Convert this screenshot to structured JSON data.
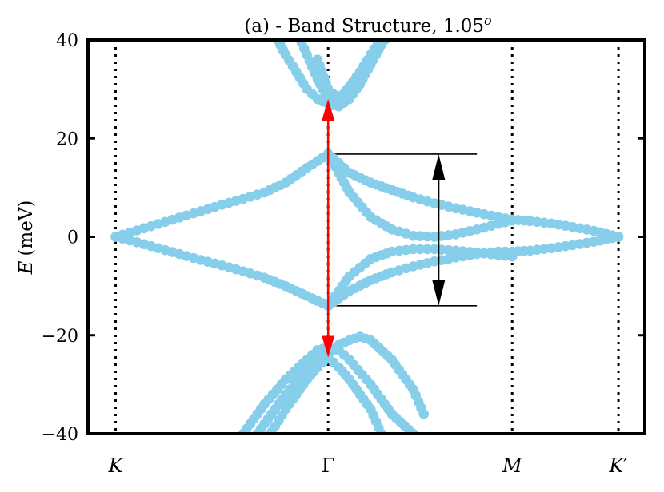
{
  "chart_data": {
    "type": "scatter",
    "title": "(a) - Band Structure, 1.05",
    "title_superscript": "o",
    "ylabel_symbol": "E",
    "ylabel_unit": "(meV)",
    "ylim": [
      -40,
      40
    ],
    "yticks": [
      {
        "value": 40,
        "label": "40"
      },
      {
        "value": 20,
        "label": "20"
      },
      {
        "value": 0,
        "label": "0"
      },
      {
        "value": -20,
        "label": "−20"
      },
      {
        "value": -40,
        "label": "−40"
      }
    ],
    "k_points": [
      {
        "label": "K",
        "pos": 0.0,
        "italic": true
      },
      {
        "label": "Γ",
        "pos": 1.0,
        "italic": false
      },
      {
        "label": "M",
        "pos": 1.866,
        "italic": true
      },
      {
        "label": "K′",
        "pos": 2.366,
        "italic": true
      }
    ],
    "xlim": [
      -0.13,
      2.49
    ],
    "marker_color": "#87ceeb",
    "grid": false,
    "series": [
      {
        "x": [
          0,
          0.1,
          0.2,
          0.3,
          0.4,
          0.5,
          0.6,
          0.7,
          0.8,
          0.9,
          1.0
        ],
        "y": [
          0,
          1.3,
          2.6,
          3.9,
          5.2,
          6.5,
          7.7,
          9.0,
          11.0,
          14.0,
          16.8
        ]
      },
      {
        "x": [
          0,
          0.1,
          0.2,
          0.3,
          0.4,
          0.5,
          0.6,
          0.7,
          0.8,
          0.9,
          1.0
        ],
        "y": [
          0,
          -1.1,
          -2.3,
          -3.5,
          -4.7,
          -5.8,
          -7.0,
          -8.3,
          -10.0,
          -12.0,
          -14.0
        ]
      },
      {
        "x": [
          1.0,
          1.05,
          1.1,
          1.2,
          1.3,
          1.4,
          1.5,
          1.6,
          1.7,
          1.8,
          1.866,
          1.95,
          2.05,
          2.15,
          2.25,
          2.366
        ],
        "y": [
          16.8,
          15.0,
          13.0,
          11.0,
          9.5,
          8.0,
          6.8,
          5.8,
          4.9,
          4.0,
          3.5,
          3.2,
          2.7,
          2.0,
          1.2,
          0
        ]
      },
      {
        "x": [
          1.0,
          1.05,
          1.1,
          1.2,
          1.3,
          1.4,
          1.5,
          1.6,
          1.7,
          1.8,
          1.866
        ],
        "y": [
          16.8,
          13.0,
          9.0,
          4.0,
          1.5,
          0.2,
          0,
          0.5,
          1.5,
          2.6,
          3.3
        ]
      },
      {
        "x": [
          1.0,
          1.05,
          1.1,
          1.2,
          1.3,
          1.4,
          1.5,
          1.6,
          1.7,
          1.8,
          1.866,
          1.95,
          2.05,
          2.15,
          2.25,
          2.366
        ],
        "y": [
          -14.0,
          -12.5,
          -11.0,
          -8.8,
          -7.2,
          -6.0,
          -5.0,
          -4.2,
          -3.5,
          -3.0,
          -3.0,
          -2.8,
          -2.3,
          -1.7,
          -1.0,
          0
        ]
      },
      {
        "x": [
          1.0,
          1.05,
          1.1,
          1.2,
          1.3,
          1.4,
          1.5,
          1.6,
          1.7,
          1.8,
          1.866
        ],
        "y": [
          -14.0,
          -11.0,
          -8.0,
          -4.5,
          -3.0,
          -2.5,
          -2.5,
          -2.8,
          -3.2,
          -3.7,
          -4.0
        ]
      },
      {
        "x": [
          0.6,
          0.7,
          0.8,
          0.9,
          0.95,
          1.0,
          1.05,
          1.1,
          1.2,
          1.3,
          1.4,
          1.45
        ],
        "y": [
          -40,
          -34,
          -29,
          -25,
          -23,
          -22.5,
          -23,
          -25,
          -30,
          -36,
          -40,
          -42
        ]
      },
      {
        "x": [
          0.6,
          0.7,
          0.8,
          0.9,
          0.95,
          1.0,
          1.05,
          1.1,
          1.15,
          1.2,
          1.3,
          1.4,
          1.45
        ],
        "y": [
          -44,
          -38,
          -32,
          -27,
          -25,
          -24,
          -22,
          -21,
          -20.3,
          -21,
          -25,
          -31,
          -36
        ]
      },
      {
        "x": [
          0.6,
          0.7,
          0.8,
          0.9,
          0.95,
          1.0,
          1.05,
          1.1,
          1.2,
          1.25,
          1.3
        ],
        "y": [
          -48,
          -42,
          -35,
          -29,
          -26.5,
          -24.5,
          -26.5,
          -29,
          -35,
          -40,
          -44
        ]
      },
      {
        "x": [
          0.75,
          0.8,
          0.85,
          0.9,
          0.95,
          1.0,
          1.05,
          1.1,
          1.15,
          1.2,
          1.25,
          1.3
        ],
        "y": [
          41,
          37,
          33.5,
          30,
          28,
          27,
          26.5,
          28,
          31,
          35,
          39,
          42
        ]
      },
      {
        "x": [
          0.85,
          0.9,
          0.95,
          1.0,
          1.05,
          1.1,
          1.15,
          1.2,
          1.25,
          1.3
        ],
        "y": [
          42,
          37,
          32,
          28,
          26.5,
          28.5,
          32,
          36,
          40,
          43
        ]
      },
      {
        "x": [
          0.95,
          1.0,
          1.05,
          1.1,
          1.15,
          1.2,
          1.25,
          1.3
        ],
        "y": [
          36,
          30,
          28,
          30.5,
          33.5,
          37,
          40.5,
          43
        ]
      }
    ],
    "annotations": {
      "red_arrow": {
        "x": 1.0,
        "y_from": -24.5,
        "y_to": 28.0,
        "color": "#ff0000"
      },
      "black_arrow": {
        "x": 1.52,
        "y_from": -14.0,
        "y_to": 16.8,
        "color": "#000000"
      },
      "hlines": [
        {
          "x0": 1.0,
          "x1": 1.7,
          "y": 16.8
        },
        {
          "x0": 1.0,
          "x1": 1.7,
          "y": -14.0
        }
      ]
    }
  }
}
